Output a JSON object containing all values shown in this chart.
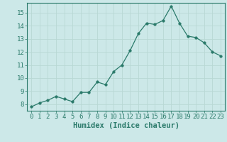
{
  "x": [
    0,
    1,
    2,
    3,
    4,
    5,
    6,
    7,
    8,
    9,
    10,
    11,
    12,
    13,
    14,
    15,
    16,
    17,
    18,
    19,
    20,
    21,
    22,
    23
  ],
  "y": [
    7.8,
    8.1,
    8.3,
    8.6,
    8.4,
    8.2,
    8.9,
    8.9,
    9.7,
    9.5,
    10.5,
    11.0,
    12.1,
    13.4,
    14.2,
    14.1,
    14.4,
    15.5,
    14.2,
    13.2,
    13.1,
    12.7,
    12.0,
    11.7
  ],
  "line_color": "#2a7a6a",
  "marker": "o",
  "marker_size": 2.5,
  "bg_color": "#cce8e8",
  "grid_major_color": "#b8d8d4",
  "grid_minor_color": "#d6ecea",
  "xlabel": "Humidex (Indice chaleur)",
  "ylim": [
    7.5,
    15.75
  ],
  "xlim": [
    -0.5,
    23.5
  ],
  "yticks": [
    8,
    9,
    10,
    11,
    12,
    13,
    14,
    15
  ],
  "xticks": [
    0,
    1,
    2,
    3,
    4,
    5,
    6,
    7,
    8,
    9,
    10,
    11,
    12,
    13,
    14,
    15,
    16,
    17,
    18,
    19,
    20,
    21,
    22,
    23
  ],
  "axis_color": "#2a7a6a",
  "tick_fontsize": 6.5,
  "xlabel_fontsize": 7.5
}
